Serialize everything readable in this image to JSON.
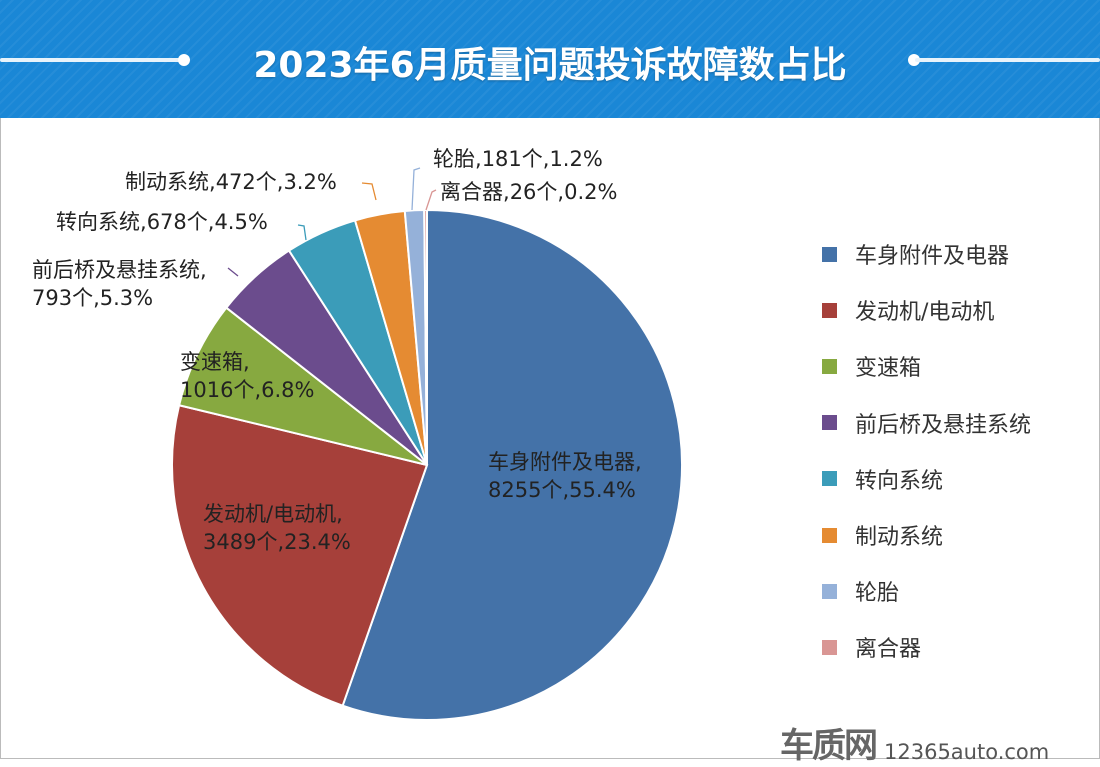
{
  "title": "2023年6月质量问题投诉故障数占比",
  "watermark": {
    "logo_text": "车质网",
    "site": "12365auto.com"
  },
  "chart_data": {
    "type": "pie",
    "title": "2023年6月质量问题投诉故障数占比",
    "unit": "个",
    "start_angle": "12 o'clock, clockwise",
    "legend_position": "right",
    "slices": [
      {
        "name": "车身附件及电器",
        "value": 8255,
        "percent": "55.4%",
        "color": "#4472a8"
      },
      {
        "name": "发动机/电动机",
        "value": 3489,
        "percent": "23.4%",
        "color": "#a6403a"
      },
      {
        "name": "变速箱",
        "value": 1016,
        "percent": "6.8%",
        "color": "#87a940"
      },
      {
        "name": "前后桥及悬挂系统",
        "value": 793,
        "percent": "5.3%",
        "color": "#6b4c8d"
      },
      {
        "name": "转向系统",
        "value": 678,
        "percent": "4.5%",
        "color": "#3b9cb9"
      },
      {
        "name": "制动系统",
        "value": 472,
        "percent": "3.2%",
        "color": "#e58b32"
      },
      {
        "name": "轮胎",
        "value": 181,
        "percent": "1.2%",
        "color": "#95b1d9"
      },
      {
        "name": "离合器",
        "value": 26,
        "percent": "0.2%",
        "color": "#d99694"
      }
    ]
  }
}
